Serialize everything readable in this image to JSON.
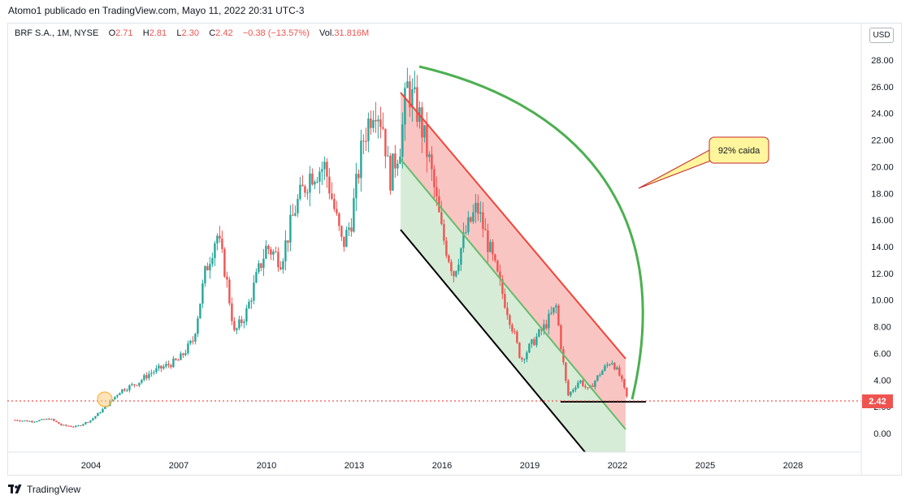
{
  "header": {
    "attribution": "Atomo1 publicado en TradingView.com, Mayo 11, 2022 20:31 UTC-3"
  },
  "legend": {
    "symbol": "BRF S.A., 1M, NYSE",
    "open_label": "O",
    "open_value": "2.71",
    "high_label": "H",
    "high_value": "2.81",
    "low_label": "L",
    "low_value": "2.30",
    "close_label": "C",
    "close_value": "2.42",
    "change": "−0.38 (−13.57%)",
    "volume_label": "Vol.",
    "volume_value": "31.816M"
  },
  "currency_button": "USD",
  "footer": {
    "brand": "TradingView"
  },
  "colors": {
    "up": "#26a69a",
    "down": "#ef5350",
    "channel_red": "#f44336",
    "channel_green": "#66bb6a",
    "arc": "#4caf50",
    "callout_fill": "#fff59d",
    "callout_border": "#c62828"
  },
  "chart_data": {
    "type": "candlestick",
    "ylim": [
      -1,
      29
    ],
    "y_ticks": [
      "28.00",
      "26.00",
      "24.00",
      "22.00",
      "20.00",
      "18.00",
      "16.00",
      "14.00",
      "12.00",
      "10.00",
      "8.00",
      "6.00",
      "4.00",
      "2.00",
      "0.00"
    ],
    "x_ticks": [
      "2004",
      "2007",
      "2010",
      "2013",
      "2016",
      "2019",
      "2022",
      "2025",
      "2028"
    ],
    "xlim": [
      2001.3,
      2030.2
    ],
    "last_price": "2.42",
    "series": [
      {
        "values_anchor": [
          [
            2001.4,
            1.0
          ],
          [
            2002.0,
            0.9
          ],
          [
            2002.6,
            1.1
          ],
          [
            2003.0,
            0.6
          ],
          [
            2003.5,
            0.5
          ],
          [
            2004.0,
            1.0
          ],
          [
            2004.5,
            2.0
          ],
          [
            2005.0,
            3.2
          ],
          [
            2005.6,
            3.8
          ],
          [
            2006.0,
            4.5
          ],
          [
            2006.5,
            5.0
          ],
          [
            2007.0,
            5.5
          ],
          [
            2007.5,
            7.0
          ],
          [
            2007.9,
            12.0
          ],
          [
            2008.3,
            15.0
          ],
          [
            2008.6,
            12.0
          ],
          [
            2008.9,
            7.5
          ],
          [
            2009.3,
            9.0
          ],
          [
            2009.7,
            12.0
          ],
          [
            2010.0,
            14.0
          ],
          [
            2010.5,
            13.0
          ],
          [
            2011.0,
            17.0
          ],
          [
            2011.5,
            19.5
          ],
          [
            2012.0,
            20.0
          ],
          [
            2012.3,
            17.0
          ],
          [
            2012.6,
            14.0
          ],
          [
            2012.9,
            16.0
          ],
          [
            2013.3,
            22.0
          ],
          [
            2013.7,
            25.0
          ],
          [
            2014.0,
            23.0
          ],
          [
            2014.2,
            19.0
          ],
          [
            2014.6,
            22.0
          ],
          [
            2014.8,
            26.0
          ],
          [
            2015.2,
            24.0
          ],
          [
            2015.6,
            20.0
          ],
          [
            2016.0,
            15.0
          ],
          [
            2016.4,
            12.0
          ],
          [
            2016.8,
            15.0
          ],
          [
            2017.2,
            17.0
          ],
          [
            2017.6,
            14.0
          ],
          [
            2018.0,
            11.0
          ],
          [
            2018.4,
            8.0
          ],
          [
            2018.7,
            5.5
          ],
          [
            2019.0,
            6.5
          ],
          [
            2019.5,
            8.0
          ],
          [
            2019.9,
            9.5
          ],
          [
            2020.1,
            6.0
          ],
          [
            2020.3,
            2.8
          ],
          [
            2020.7,
            4.0
          ],
          [
            2021.0,
            3.2
          ],
          [
            2021.4,
            4.5
          ],
          [
            2021.8,
            5.5
          ],
          [
            2022.1,
            4.2
          ],
          [
            2022.36,
            2.42
          ]
        ]
      }
    ],
    "annotations": [
      {
        "type": "callout",
        "text": "92% caida"
      }
    ]
  }
}
